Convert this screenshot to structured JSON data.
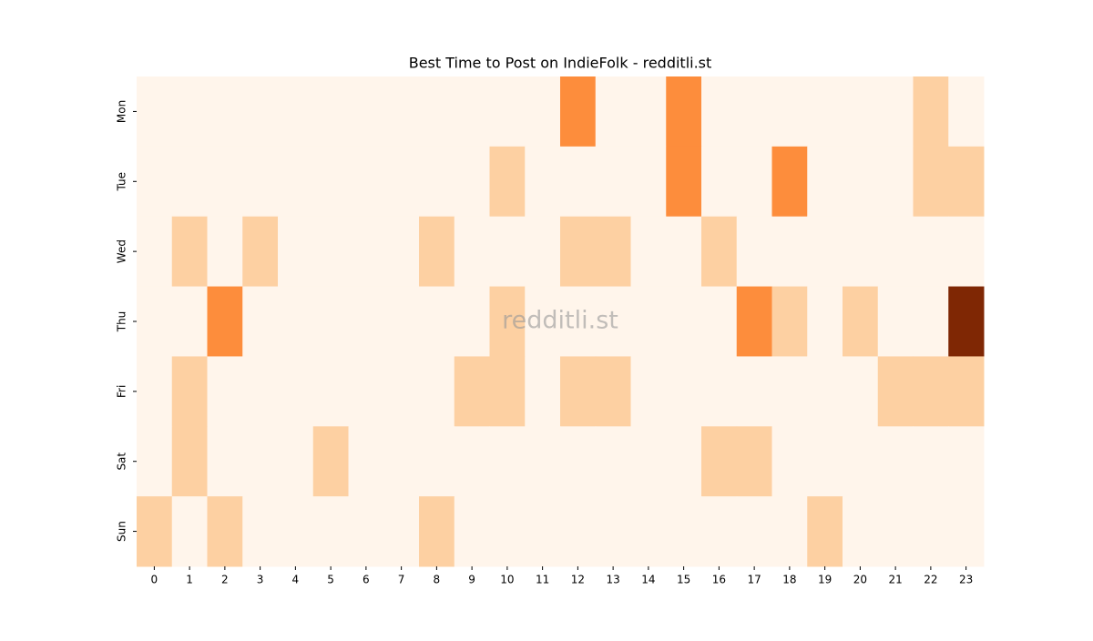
{
  "chart_data": {
    "type": "heatmap",
    "title": "Best Time to Post on IndieFolk - redditli.st",
    "watermark": "redditli.st",
    "x": [
      0,
      1,
      2,
      3,
      4,
      5,
      6,
      7,
      8,
      9,
      10,
      11,
      12,
      13,
      14,
      15,
      16,
      17,
      18,
      19,
      20,
      21,
      22,
      23
    ],
    "categories": [
      "Mon",
      "Tue",
      "Wed",
      "Thu",
      "Fri",
      "Sat",
      "Sun"
    ],
    "values": [
      [
        0,
        0,
        0,
        0,
        0,
        0,
        0,
        0,
        0,
        0,
        0,
        0,
        2,
        0,
        0,
        2,
        0,
        0,
        0,
        0,
        0,
        0,
        1,
        0
      ],
      [
        0,
        0,
        0,
        0,
        0,
        0,
        0,
        0,
        0,
        0,
        1,
        0,
        0,
        0,
        0,
        2,
        0,
        0,
        2,
        0,
        0,
        0,
        1,
        1
      ],
      [
        0,
        1,
        0,
        1,
        0,
        0,
        0,
        0,
        1,
        0,
        0,
        0,
        1,
        1,
        0,
        0,
        1,
        0,
        0,
        0,
        0,
        0,
        0,
        0
      ],
      [
        0,
        0,
        2,
        0,
        0,
        0,
        0,
        0,
        0,
        0,
        1,
        0,
        0,
        0,
        0,
        0,
        0,
        2,
        1,
        0,
        1,
        0,
        0,
        3
      ],
      [
        0,
        1,
        0,
        0,
        0,
        0,
        0,
        0,
        0,
        1,
        1,
        0,
        1,
        1,
        0,
        0,
        0,
        0,
        0,
        0,
        0,
        1,
        1,
        1
      ],
      [
        0,
        1,
        0,
        0,
        0,
        1,
        0,
        0,
        0,
        0,
        0,
        0,
        0,
        0,
        0,
        0,
        1,
        1,
        0,
        0,
        0,
        0,
        0,
        0
      ],
      [
        1,
        0,
        1,
        0,
        0,
        0,
        0,
        0,
        1,
        0,
        0,
        0,
        0,
        0,
        0,
        0,
        0,
        0,
        0,
        1,
        0,
        0,
        0,
        0
      ]
    ],
    "zlim": [
      0,
      3
    ],
    "colors": [
      "#fff5eb",
      "#fdd0a2",
      "#fd8d3c",
      "#7f2704"
    ]
  }
}
